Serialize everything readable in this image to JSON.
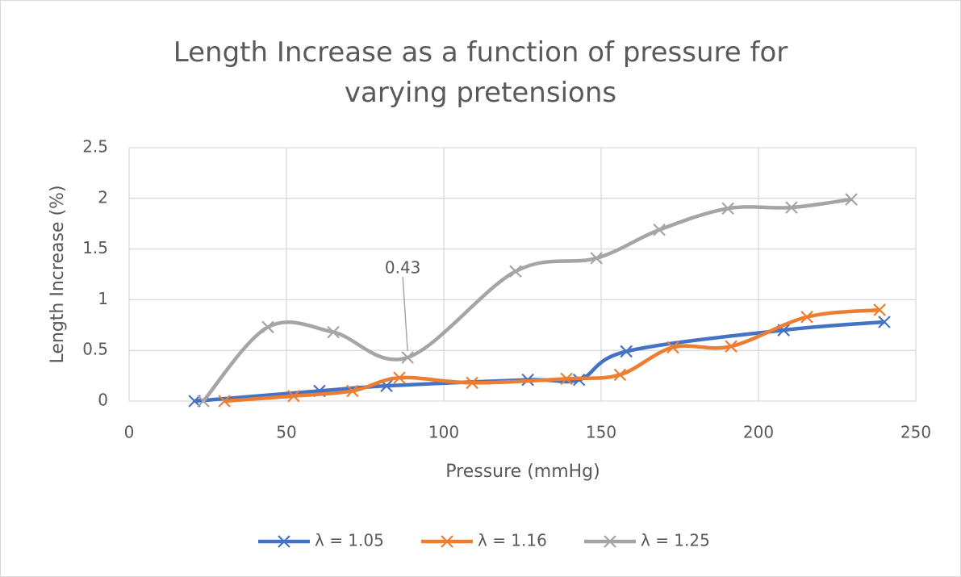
{
  "chart_data": {
    "type": "scatter",
    "title": "Length Increase as a function of pressure for varying pretensions",
    "x_label": "Pressure (mmHg)",
    "y_label": "Length Increase (%)",
    "xlim": [
      0,
      250
    ],
    "xticks": [
      0,
      50,
      100,
      150,
      200,
      250
    ],
    "ylim": [
      0,
      2.5
    ],
    "yticks": [
      0,
      0.5,
      1,
      1.5,
      2,
      2.5
    ],
    "grid": true,
    "smooth": true,
    "legend": "bottom",
    "series": [
      {
        "name": "λ = 1.05",
        "color": "#4472c4",
        "x": [
          20.8,
          60.5,
          81.8,
          126.7,
          143,
          158,
          208,
          240
        ],
        "values": [
          0,
          0.1,
          0.15,
          0.21,
          0.21,
          0.49,
          0.7,
          0.78
        ]
      },
      {
        "name": "λ = 1.16",
        "color": "#ed7d31",
        "x": [
          30.3,
          52.3,
          71,
          85.9,
          109,
          139,
          156,
          172.8,
          191.3,
          215.4,
          238.5
        ],
        "values": [
          0,
          0.05,
          0.1,
          0.23,
          0.18,
          0.22,
          0.26,
          0.53,
          0.54,
          0.83,
          0.9
        ]
      },
      {
        "name": "λ = 1.25",
        "color": "#a5a5a5",
        "x": [
          23.6,
          44.1,
          64.9,
          88.5,
          122.8,
          148.5,
          168.5,
          190.3,
          210.5,
          229.5
        ],
        "values": [
          0,
          0.73,
          0.68,
          0.43,
          1.28,
          1.41,
          1.69,
          1.9,
          1.91,
          1.99
        ],
        "value_labels": [
          null,
          null,
          null,
          "0.43",
          null,
          null,
          null,
          null,
          null,
          null
        ]
      }
    ]
  }
}
